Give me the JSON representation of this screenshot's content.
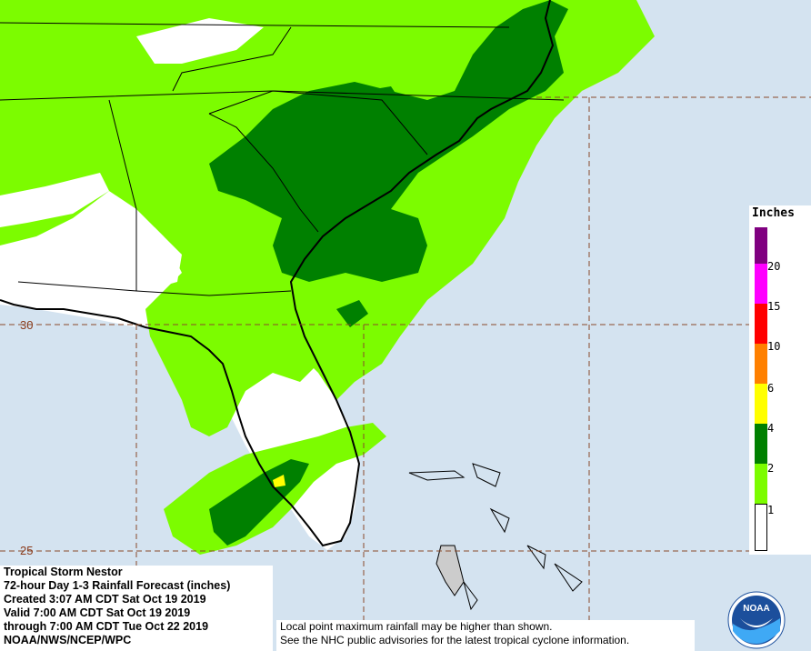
{
  "map": {
    "lat_labels": [
      "30",
      "25"
    ]
  },
  "legend": {
    "title": "Inches",
    "levels": [
      {
        "label": "20",
        "color": "#800080"
      },
      {
        "label": "15",
        "color": "#ff00ff"
      },
      {
        "label": "10",
        "color": "#ff0000"
      },
      {
        "label": "6",
        "color": "#ff8000"
      },
      {
        "label": "4",
        "color": "#ffff00"
      },
      {
        "label": "2",
        "color": "#008000"
      },
      {
        "label": "1",
        "color": "#7cfc00"
      },
      {
        "label": "",
        "color": "#ffffff"
      }
    ]
  },
  "info": {
    "lines": [
      "Tropical Storm Nestor",
      "72-hour Day 1-3 Rainfall Forecast (inches)",
      "Created 3:07 AM CDT Sat Oct 19 2019",
      "Valid 7:00 AM CDT Sat Oct 19 2019",
      "through 7:00 AM CDT Tue Oct 22 2019",
      "NOAA/NWS/NCEP/WPC"
    ]
  },
  "disclaimer": {
    "line1": "Local point maximum rainfall may be higher than shown.",
    "line2": "See the NHC public advisories for the latest tropical cyclone information."
  },
  "logo": {
    "text": "NOAA",
    "icon": "noaa-logo-icon"
  },
  "colors": {
    "ocean": "#d4e3f0",
    "rain_1_2": "#7cfc00",
    "rain_2_4": "#008000",
    "rain_4_6": "#ffff00",
    "no_rain": "#ffffff",
    "grid": "#8a4a2a"
  }
}
